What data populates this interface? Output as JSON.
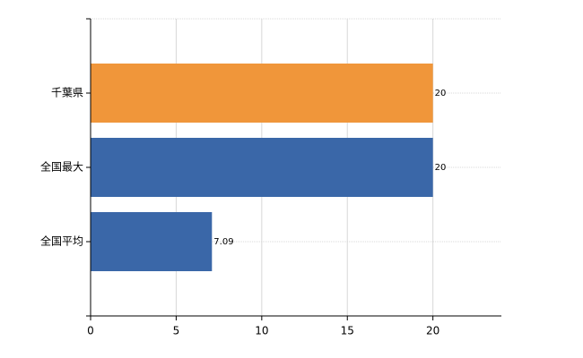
{
  "chart_data": {
    "type": "bar",
    "orientation": "horizontal",
    "categories": [
      "千葉県",
      "全国最大",
      "全国平均"
    ],
    "values": [
      20,
      20,
      7.09
    ],
    "colors": [
      "#f0963a",
      "#3a67a8",
      "#3a67a8"
    ],
    "xlim": [
      0,
      24
    ],
    "xticks": [
      0,
      5,
      10,
      15,
      20
    ],
    "grid": true
  }
}
